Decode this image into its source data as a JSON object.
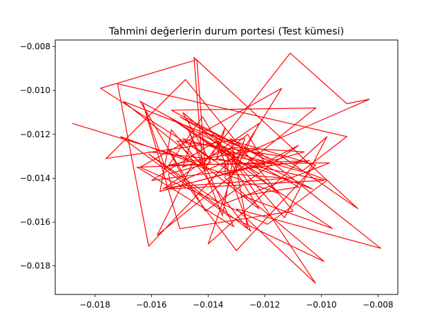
{
  "chart_data": {
    "type": "line",
    "title": "Tahmini değerlerin durum portesi (Test kümesi)",
    "xlabel": "",
    "ylabel": "",
    "xlim": [
      -0.0194,
      -0.0073
    ],
    "ylim": [
      -0.0193,
      -0.0077
    ],
    "xticks": [
      -0.018,
      -0.016,
      -0.014,
      -0.012,
      -0.01,
      -0.008
    ],
    "xtick_labels": [
      "−0.018",
      "−0.016",
      "−0.014",
      "−0.012",
      "−0.010",
      "−0.008"
    ],
    "yticks": [
      -0.018,
      -0.016,
      -0.014,
      -0.012,
      -0.01,
      -0.008
    ],
    "ytick_labels": [
      "−0.018",
      "−0.016",
      "−0.014",
      "−0.012",
      "−0.010",
      "−0.008"
    ],
    "grid": false,
    "line_color": "#ff0000",
    "series": [
      {
        "x": [
          -0.0188,
          -0.0145,
          -0.0158,
          -0.0102,
          -0.0153,
          -0.0119,
          -0.0132,
          -0.0126,
          -0.0151,
          -0.0114,
          -0.0087,
          -0.0145,
          -0.0142,
          -0.0111,
          -0.0091,
          -0.0083,
          -0.0156,
          -0.0122,
          -0.0131,
          -0.0149,
          -0.0107,
          -0.0091,
          -0.0172,
          -0.0161,
          -0.0128,
          -0.015,
          -0.0122,
          -0.0103,
          -0.013,
          -0.0114,
          -0.0164,
          -0.0119,
          -0.0098,
          -0.017,
          -0.0122,
          -0.0142,
          -0.0155,
          -0.0163,
          -0.015,
          -0.011,
          -0.0148,
          -0.0176,
          -0.0127,
          -0.014,
          -0.0098,
          -0.0113,
          -0.0132,
          -0.0118,
          -0.0155,
          -0.0099,
          -0.0137,
          -0.0134,
          -0.0141,
          -0.0144,
          -0.0178,
          -0.0138,
          -0.0126,
          -0.012,
          -0.0108,
          -0.0141,
          -0.0164,
          -0.0108,
          -0.0128,
          -0.0096,
          -0.0154,
          -0.0122,
          -0.0145,
          -0.0149,
          -0.0131,
          -0.0106,
          -0.0157,
          -0.0153,
          -0.0141,
          -0.0154,
          -0.0147,
          -0.013,
          -0.0102,
          -0.0142,
          -0.0131,
          -0.0135,
          -0.0147,
          -0.0131,
          -0.0165,
          -0.0104,
          -0.016,
          -0.0137,
          -0.0125,
          -0.0161,
          -0.0135,
          -0.0097,
          -0.0154,
          -0.0123,
          -0.0079,
          -0.013,
          -0.0102,
          -0.0133,
          -0.0133,
          -0.0112,
          -0.0153,
          -0.0154,
          -0.0139,
          -0.0149,
          -0.0115,
          -0.0171,
          -0.0133,
          -0.0099,
          -0.0134,
          -0.0134,
          -0.0161
        ],
        "y": [
          -0.0115,
          -0.0132,
          -0.0166,
          -0.0108,
          -0.0109,
          -0.0132,
          -0.0122,
          -0.0163,
          -0.0123,
          -0.013,
          -0.0154,
          -0.0085,
          -0.0134,
          -0.0083,
          -0.0106,
          -0.0104,
          -0.0145,
          -0.0115,
          -0.0138,
          -0.0122,
          -0.0137,
          -0.0121,
          -0.0097,
          -0.0171,
          -0.0126,
          -0.0112,
          -0.0133,
          -0.0145,
          -0.0132,
          -0.0099,
          -0.0135,
          -0.0161,
          -0.0141,
          -0.0105,
          -0.0154,
          -0.0112,
          -0.0136,
          -0.0106,
          -0.0163,
          -0.0155,
          -0.0095,
          -0.0131,
          -0.0122,
          -0.017,
          -0.0121,
          -0.0158,
          -0.013,
          -0.0133,
          -0.0145,
          -0.0141,
          -0.0131,
          -0.0117,
          -0.0136,
          -0.0086,
          -0.0099,
          -0.0132,
          -0.012,
          -0.0133,
          -0.0125,
          -0.0155,
          -0.0105,
          -0.0144,
          -0.0148,
          -0.0163,
          -0.0112,
          -0.0138,
          -0.012,
          -0.0135,
          -0.0126,
          -0.0128,
          -0.0146,
          -0.0118,
          -0.0136,
          -0.0127,
          -0.0144,
          -0.0173,
          -0.0134,
          -0.0119,
          -0.013,
          -0.0157,
          -0.0118,
          -0.0162,
          -0.0135,
          -0.0132,
          -0.0141,
          -0.0123,
          -0.0164,
          -0.0129,
          -0.0152,
          -0.0133,
          -0.0134,
          -0.0127,
          -0.0172,
          -0.0154,
          -0.0188,
          -0.0128,
          -0.0138,
          -0.014,
          -0.0144,
          -0.0138,
          -0.0133,
          -0.011,
          -0.0147,
          -0.0121,
          -0.0157,
          -0.0178,
          -0.014,
          -0.0132,
          -0.0128
        ]
      }
    ]
  }
}
